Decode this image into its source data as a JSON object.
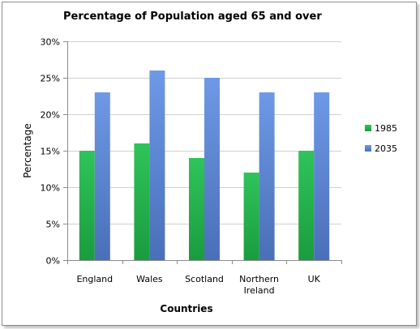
{
  "chart_data": {
    "type": "bar",
    "title": "Percentage of Population aged 65 and over",
    "xlabel": "Countries",
    "ylabel": "Percentage",
    "categories": [
      [
        "England"
      ],
      [
        "Wales"
      ],
      [
        "Scotland"
      ],
      [
        "Northern",
        "Ireland"
      ],
      [
        "UK"
      ]
    ],
    "series": [
      {
        "name": "1985",
        "color": "#22b14c",
        "values": [
          15,
          16,
          14,
          12,
          15
        ]
      },
      {
        "name": "2035",
        "color": "#5b86d6",
        "values": [
          23,
          26,
          25,
          23,
          23
        ]
      }
    ],
    "ylim": [
      0,
      30
    ],
    "yticks": [
      "0%",
      "5%",
      "10%",
      "15%",
      "20%",
      "25%",
      "30%"
    ],
    "grid": true,
    "legend_position": "right"
  }
}
